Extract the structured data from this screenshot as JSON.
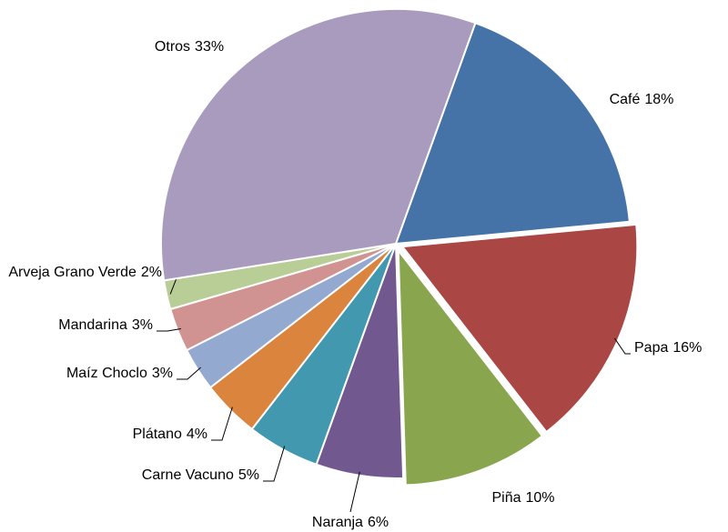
{
  "chart_data": {
    "type": "pie",
    "categories": [
      "Café",
      "Papa",
      "Piña",
      "Naranja",
      "Carne Vacuno",
      "Plátano",
      "Maíz Choclo",
      "Mandarina",
      "Arveja Grano Verde",
      "Otros"
    ],
    "values": [
      18,
      16,
      10,
      6,
      5,
      4,
      3,
      3,
      2,
      33
    ],
    "value_labels": [
      "18%",
      "16%",
      "10%",
      "6%",
      "5%",
      "4%",
      "3%",
      "3%",
      "2%",
      "33%"
    ],
    "colors": [
      "#4572a7",
      "#aa4643",
      "#89a54e",
      "#71588f",
      "#4198af",
      "#db843d",
      "#93a9cf",
      "#d19392",
      "#b9cd96",
      "#a99bbd"
    ]
  }
}
